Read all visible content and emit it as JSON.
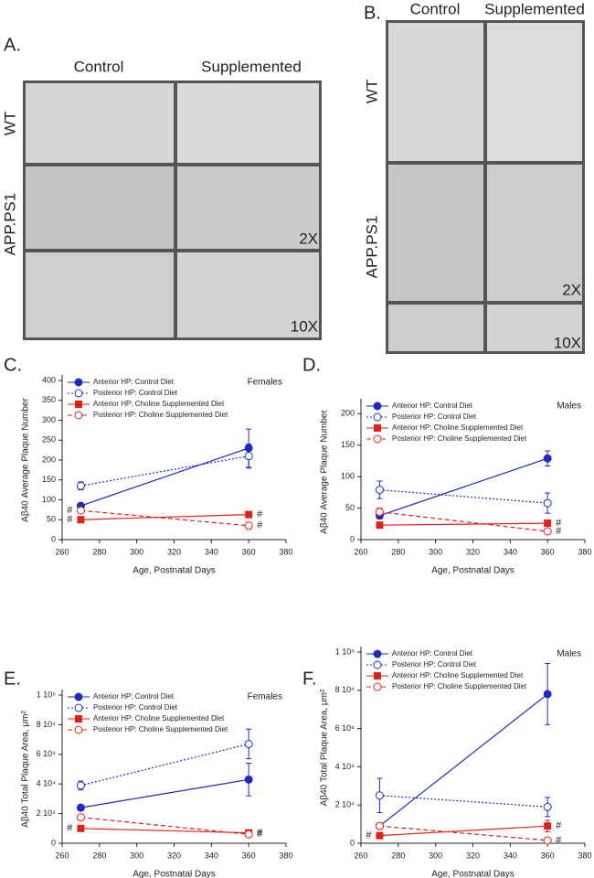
{
  "image_panels": [
    {
      "label": "A.",
      "columns": [
        "Control",
        "Supplemented"
      ],
      "rows": [
        "WT",
        "APP.PS1"
      ],
      "magnifications": [
        "2X",
        "10X"
      ]
    },
    {
      "label": "B.",
      "columns": [
        "Control",
        "Supplemented"
      ],
      "rows": [
        "WT",
        "APP.PS1"
      ],
      "magnifications": [
        "2X",
        "10X"
      ]
    }
  ],
  "chart_data": [
    {
      "type": "line",
      "label": "C.",
      "corner_text": "Females",
      "xlabel": "Age, Postnatal Days",
      "ylabel": "Aβ40 Average Plaque Number",
      "x": [
        270,
        360
      ],
      "xlim": [
        260,
        380
      ],
      "xticks": [
        260,
        280,
        300,
        320,
        340,
        360,
        380
      ],
      "ylim": [
        0,
        400
      ],
      "yticks": [
        0,
        50,
        100,
        150,
        200,
        250,
        300,
        350,
        400
      ],
      "series": [
        {
          "name": "Anterior HP: Control Diet",
          "color": "#1f2bbf",
          "style": "solid",
          "marker": "filled-circle",
          "values": [
            85,
            230
          ],
          "errors": [
            5,
            48
          ],
          "notes": [
            null,
            null
          ]
        },
        {
          "name": "Posterior HP: Control Diet",
          "color": "#1f2bbf",
          "style": "dotted",
          "marker": "open-circle",
          "values": [
            135,
            210
          ],
          "errors": [
            10,
            30
          ],
          "notes": [
            null,
            null
          ]
        },
        {
          "name": "Anterior HP: Choline Supplemented Diet",
          "color": "#e0201b",
          "style": "solid",
          "marker": "filled-square",
          "values": [
            50,
            63
          ],
          "errors": [
            3,
            7
          ],
          "notes": [
            "#",
            "#"
          ]
        },
        {
          "name": "Posterior HP: Choline Supplemented Diet",
          "color": "#e0201b",
          "style": "dashed",
          "marker": "open-circle",
          "values": [
            73,
            35
          ],
          "errors": [
            5,
            8
          ],
          "notes": [
            "#",
            "#"
          ]
        }
      ]
    },
    {
      "type": "line",
      "label": "D.",
      "corner_text": "Males",
      "xlabel": "Age, Postnatal Days",
      "ylabel": "Aβ40 Average Plaque Number",
      "x": [
        270,
        360
      ],
      "xlim": [
        260,
        380
      ],
      "xticks": [
        260,
        280,
        300,
        320,
        340,
        360,
        380
      ],
      "ylim": [
        0,
        215
      ],
      "yticks": [
        0,
        50,
        100,
        150,
        200
      ],
      "series": [
        {
          "name": "Anterior HP: Control Diet",
          "color": "#1f2bbf",
          "style": "solid",
          "marker": "filled-circle",
          "values": [
            38,
            129
          ],
          "errors": [
            5,
            12
          ],
          "notes": [
            null,
            null
          ]
        },
        {
          "name": "Posterior HP: Control Diet",
          "color": "#1f2bbf",
          "style": "dotted",
          "marker": "open-circle",
          "values": [
            79,
            58
          ],
          "errors": [
            14,
            16
          ],
          "notes": [
            null,
            null
          ]
        },
        {
          "name": "Anterior HP: Choline Supplemented Diet",
          "color": "#e0201b",
          "style": "solid",
          "marker": "filled-square",
          "values": [
            23,
            26
          ],
          "errors": [
            2,
            5
          ],
          "notes": [
            null,
            "#"
          ]
        },
        {
          "name": "Posterior HP: Choline Supplemented Diet",
          "color": "#e0201b",
          "style": "dashed",
          "marker": "open-circle",
          "values": [
            44,
            13
          ],
          "errors": [
            6,
            4
          ],
          "notes": [
            null,
            "#"
          ]
        }
      ]
    },
    {
      "type": "line",
      "label": "E.",
      "corner_text": "Females",
      "xlabel": "Age, Postnatal Days",
      "ylabel": "Aβ40 Total Plaque Area, μm²",
      "x": [
        270,
        360
      ],
      "xlim": [
        260,
        380
      ],
      "xticks": [
        260,
        280,
        300,
        320,
        340,
        360,
        380
      ],
      "ylim": [
        0,
        100000
      ],
      "yticks": [
        0,
        {
          "value": 20000,
          "label": "2 10⁴"
        },
        {
          "value": 40000,
          "label": "4 10⁴"
        },
        {
          "value": 60000,
          "label": "6 10⁴"
        },
        {
          "value": 80000,
          "label": "8 10⁴"
        },
        {
          "value": 100000,
          "label": "1 10⁵"
        }
      ],
      "series": [
        {
          "name": "Anterior HP: Control Diet",
          "color": "#1f2bbf",
          "style": "solid",
          "marker": "filled-circle",
          "values": [
            24000,
            43000
          ],
          "errors": [
            2000,
            11000
          ],
          "notes": [
            null,
            null
          ]
        },
        {
          "name": "Posterior HP: Control Diet",
          "color": "#1f2bbf",
          "style": "dotted",
          "marker": "open-circle",
          "values": [
            39000,
            67000
          ],
          "errors": [
            3000,
            10000
          ],
          "notes": [
            null,
            null
          ]
        },
        {
          "name": "Anterior HP: Choline Supplemented Diet",
          "color": "#e0201b",
          "style": "solid",
          "marker": "filled-square",
          "values": [
            10000,
            7000
          ],
          "errors": [
            800,
            1500
          ],
          "notes": [
            "#",
            "#"
          ]
        },
        {
          "name": "Posterior HP: Choline Supplemented Diet",
          "color": "#e0201b",
          "style": "dashed",
          "marker": "open-circle",
          "values": [
            17500,
            6000
          ],
          "errors": [
            1500,
            1000
          ],
          "notes": [
            null,
            "#"
          ]
        }
      ]
    },
    {
      "type": "line",
      "label": "F.",
      "corner_text": "Males",
      "xlabel": "Age, Postnatal Days",
      "ylabel": "Aβ40 Total Plaque Area, μm²",
      "x": [
        270,
        360
      ],
      "xlim": [
        260,
        380
      ],
      "xticks": [
        260,
        280,
        300,
        320,
        340,
        360,
        380
      ],
      "ylim": [
        0,
        100000
      ],
      "yticks": [
        0,
        {
          "value": 20000,
          "label": "2 10⁴"
        },
        {
          "value": 40000,
          "label": "4 10⁴"
        },
        {
          "value": 60000,
          "label": "6 10⁴"
        },
        {
          "value": 80000,
          "label": "8 10⁴"
        },
        {
          "value": 100000,
          "label": "1 10⁵"
        }
      ],
      "series": [
        {
          "name": "Anterior HP: Control Diet",
          "color": "#1f2bbf",
          "style": "solid",
          "marker": "filled-circle",
          "values": [
            9000,
            78000
          ],
          "errors": [
            1000,
            16000
          ],
          "notes": [
            null,
            null
          ]
        },
        {
          "name": "Posterior HP: Control Diet",
          "color": "#1f2bbf",
          "style": "dotted",
          "marker": "open-circle",
          "values": [
            25000,
            19000
          ],
          "errors": [
            9000,
            5000
          ],
          "notes": [
            null,
            null
          ]
        },
        {
          "name": "Anterior HP: Choline Supplemented Diet",
          "color": "#e0201b",
          "style": "solid",
          "marker": "filled-square",
          "values": [
            4000,
            9000
          ],
          "errors": [
            500,
            3000
          ],
          "notes": [
            "#",
            "#"
          ]
        },
        {
          "name": "Posterior HP: Choline Supplemented Diet",
          "color": "#e0201b",
          "style": "dashed",
          "marker": "open-circle",
          "values": [
            9000,
            1500
          ],
          "errors": [
            800,
            1000
          ],
          "notes": [
            null,
            "#"
          ]
        }
      ]
    }
  ]
}
